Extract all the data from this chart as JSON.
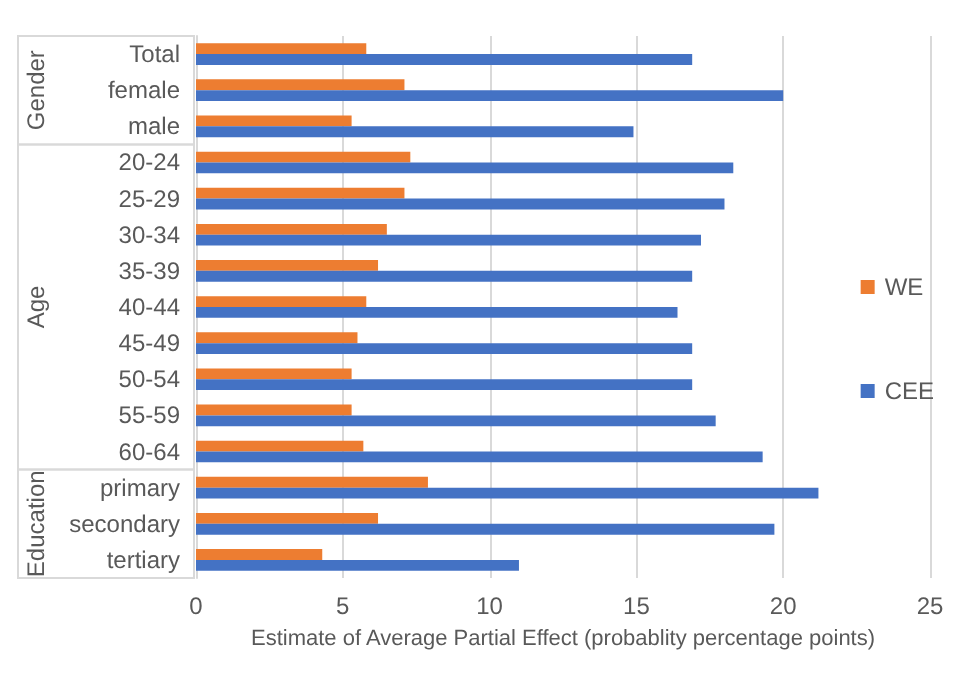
{
  "chart_data": {
    "type": "bar",
    "orientation": "horizontal",
    "xlabel": "Estimate of Average Partial Effect (probablity percentage points)",
    "categories": [
      "Total",
      "female",
      "male",
      "20-24",
      "25-29",
      "30-34",
      "35-39",
      "40-44",
      "45-49",
      "50-54",
      "55-59",
      "60-64",
      "primary",
      "secondary",
      "tertiary"
    ],
    "series": [
      {
        "name": "WE",
        "color": "#ed7d31",
        "values": [
          5.8,
          7.1,
          5.3,
          7.3,
          7.1,
          6.5,
          6.2,
          5.8,
          5.5,
          5.3,
          5.3,
          5.7,
          7.9,
          6.2,
          4.3
        ]
      },
      {
        "name": "CEE",
        "color": "#4472c4",
        "values": [
          16.9,
          20.0,
          14.9,
          18.3,
          18.0,
          17.2,
          16.9,
          16.4,
          16.9,
          16.9,
          17.7,
          19.3,
          21.2,
          19.7,
          11.0
        ]
      }
    ],
    "xlim": [
      0,
      25
    ],
    "xticks": [
      0,
      5,
      10,
      15,
      20,
      25
    ],
    "grid": "x",
    "legend": "right",
    "annotations": [
      "Gender",
      "Age",
      "Education"
    ]
  }
}
